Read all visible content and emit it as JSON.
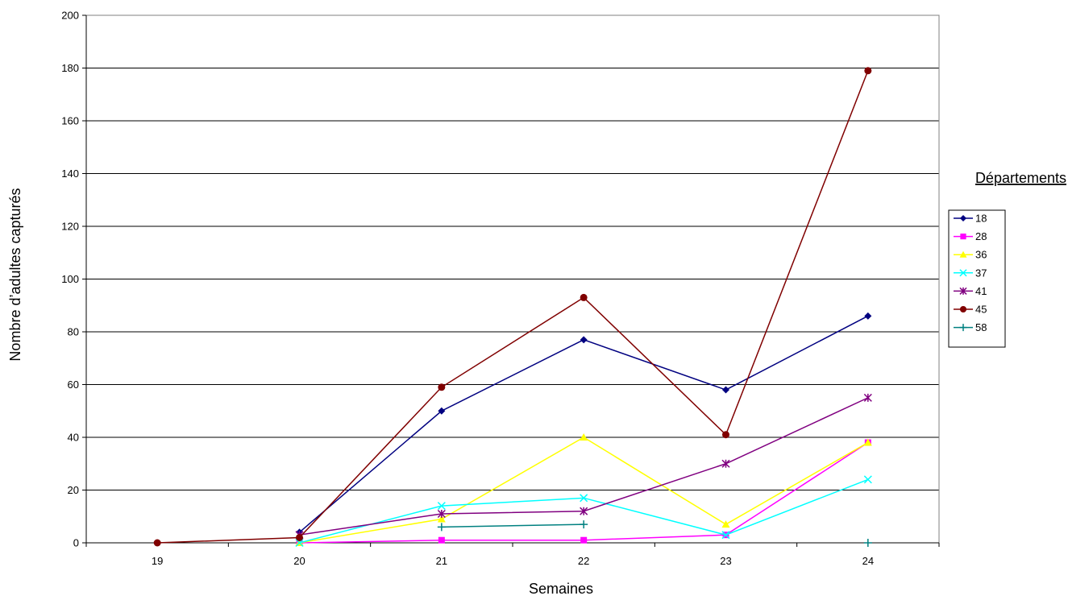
{
  "chart_data": {
    "type": "line",
    "title": "",
    "xlabel": "Semaines",
    "ylabel": "Nombre d’adultes capturés",
    "categories": [
      "19",
      "20",
      "21",
      "22",
      "23",
      "24"
    ],
    "ylim": [
      0,
      200
    ],
    "yticks": [
      "0",
      "20",
      "40",
      "60",
      "80",
      "100",
      "120",
      "140",
      "160",
      "180",
      "200"
    ],
    "grid": "horizontal",
    "legend_title": "Départements",
    "legend_position": "right",
    "series": [
      {
        "name": "18",
        "color": "#000080",
        "marker": "diamond",
        "values": [
          null,
          4,
          50,
          77,
          58,
          86
        ]
      },
      {
        "name": "28",
        "color": "#FF00FF",
        "marker": "square",
        "values": [
          null,
          0,
          1,
          1,
          3,
          38
        ]
      },
      {
        "name": "36",
        "color": "#FFFF00",
        "marker": "triangle",
        "values": [
          null,
          0,
          9,
          40,
          7,
          38
        ]
      },
      {
        "name": "37",
        "color": "#00FFFF",
        "marker": "x",
        "values": [
          null,
          0,
          14,
          17,
          3,
          24
        ]
      },
      {
        "name": "41",
        "color": "#800080",
        "marker": "star",
        "values": [
          null,
          3,
          11,
          12,
          30,
          55
        ]
      },
      {
        "name": "45",
        "color": "#800000",
        "marker": "circle",
        "values": [
          0,
          2,
          59,
          93,
          41,
          179
        ]
      },
      {
        "name": "58",
        "color": "#008080",
        "marker": "plus",
        "values": [
          null,
          null,
          6,
          7,
          null,
          0
        ]
      }
    ]
  }
}
